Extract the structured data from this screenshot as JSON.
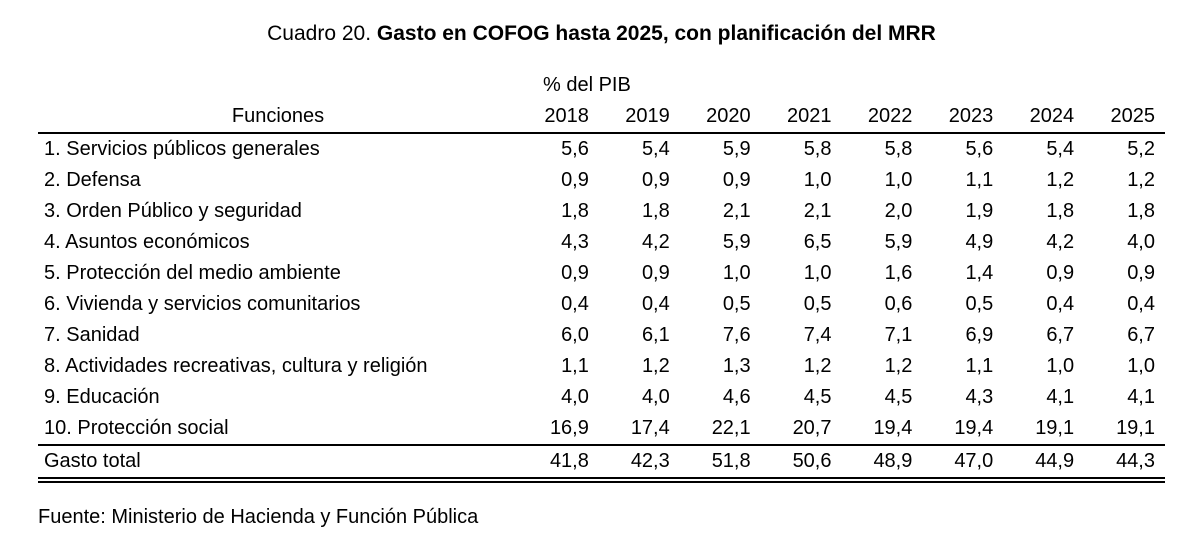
{
  "title": {
    "prefix": "Cuadro 20. ",
    "main": "Gasto en COFOG hasta 2025, con planificación del MRR"
  },
  "table": {
    "unit_label": "% del PIB",
    "header": {
      "functions_label": "Funciones",
      "years": [
        "2018",
        "2019",
        "2020",
        "2021",
        "2022",
        "2023",
        "2024",
        "2025"
      ]
    },
    "rows": [
      {
        "label": "1. Servicios públicos generales",
        "values": [
          "5,6",
          "5,4",
          "5,9",
          "5,8",
          "5,8",
          "5,6",
          "5,4",
          "5,2"
        ]
      },
      {
        "label": "2. Defensa",
        "values": [
          "0,9",
          "0,9",
          "0,9",
          "1,0",
          "1,0",
          "1,1",
          "1,2",
          "1,2"
        ]
      },
      {
        "label": "3. Orden Público y seguridad",
        "values": [
          "1,8",
          "1,8",
          "2,1",
          "2,1",
          "2,0",
          "1,9",
          "1,8",
          "1,8"
        ]
      },
      {
        "label": "4. Asuntos económicos",
        "values": [
          "4,3",
          "4,2",
          "5,9",
          "6,5",
          "5,9",
          "4,9",
          "4,2",
          "4,0"
        ]
      },
      {
        "label": "5. Protección del medio ambiente",
        "values": [
          "0,9",
          "0,9",
          "1,0",
          "1,0",
          "1,6",
          "1,4",
          "0,9",
          "0,9"
        ]
      },
      {
        "label": "6. Vivienda y servicios comunitarios",
        "values": [
          "0,4",
          "0,4",
          "0,5",
          "0,5",
          "0,6",
          "0,5",
          "0,4",
          "0,4"
        ]
      },
      {
        "label": "7. Sanidad",
        "values": [
          "6,0",
          "6,1",
          "7,6",
          "7,4",
          "7,1",
          "6,9",
          "6,7",
          "6,7"
        ]
      },
      {
        "label": "8. Actividades recreativas, cultura y religión",
        "values": [
          "1,1",
          "1,2",
          "1,3",
          "1,2",
          "1,2",
          "1,1",
          "1,0",
          "1,0"
        ]
      },
      {
        "label": "9. Educación",
        "values": [
          "4,0",
          "4,0",
          "4,6",
          "4,5",
          "4,5",
          "4,3",
          "4,1",
          "4,1"
        ]
      },
      {
        "label": "10. Protección social",
        "values": [
          "16,9",
          "17,4",
          "22,1",
          "20,7",
          "19,4",
          "19,4",
          "19,1",
          "19,1"
        ]
      }
    ],
    "total_row": {
      "label": "Gasto total",
      "values": [
        "41,8",
        "42,3",
        "51,8",
        "50,6",
        "48,9",
        "47,0",
        "44,9",
        "44,3"
      ]
    }
  },
  "source": "Fuente: Ministerio de Hacienda y Función Pública"
}
